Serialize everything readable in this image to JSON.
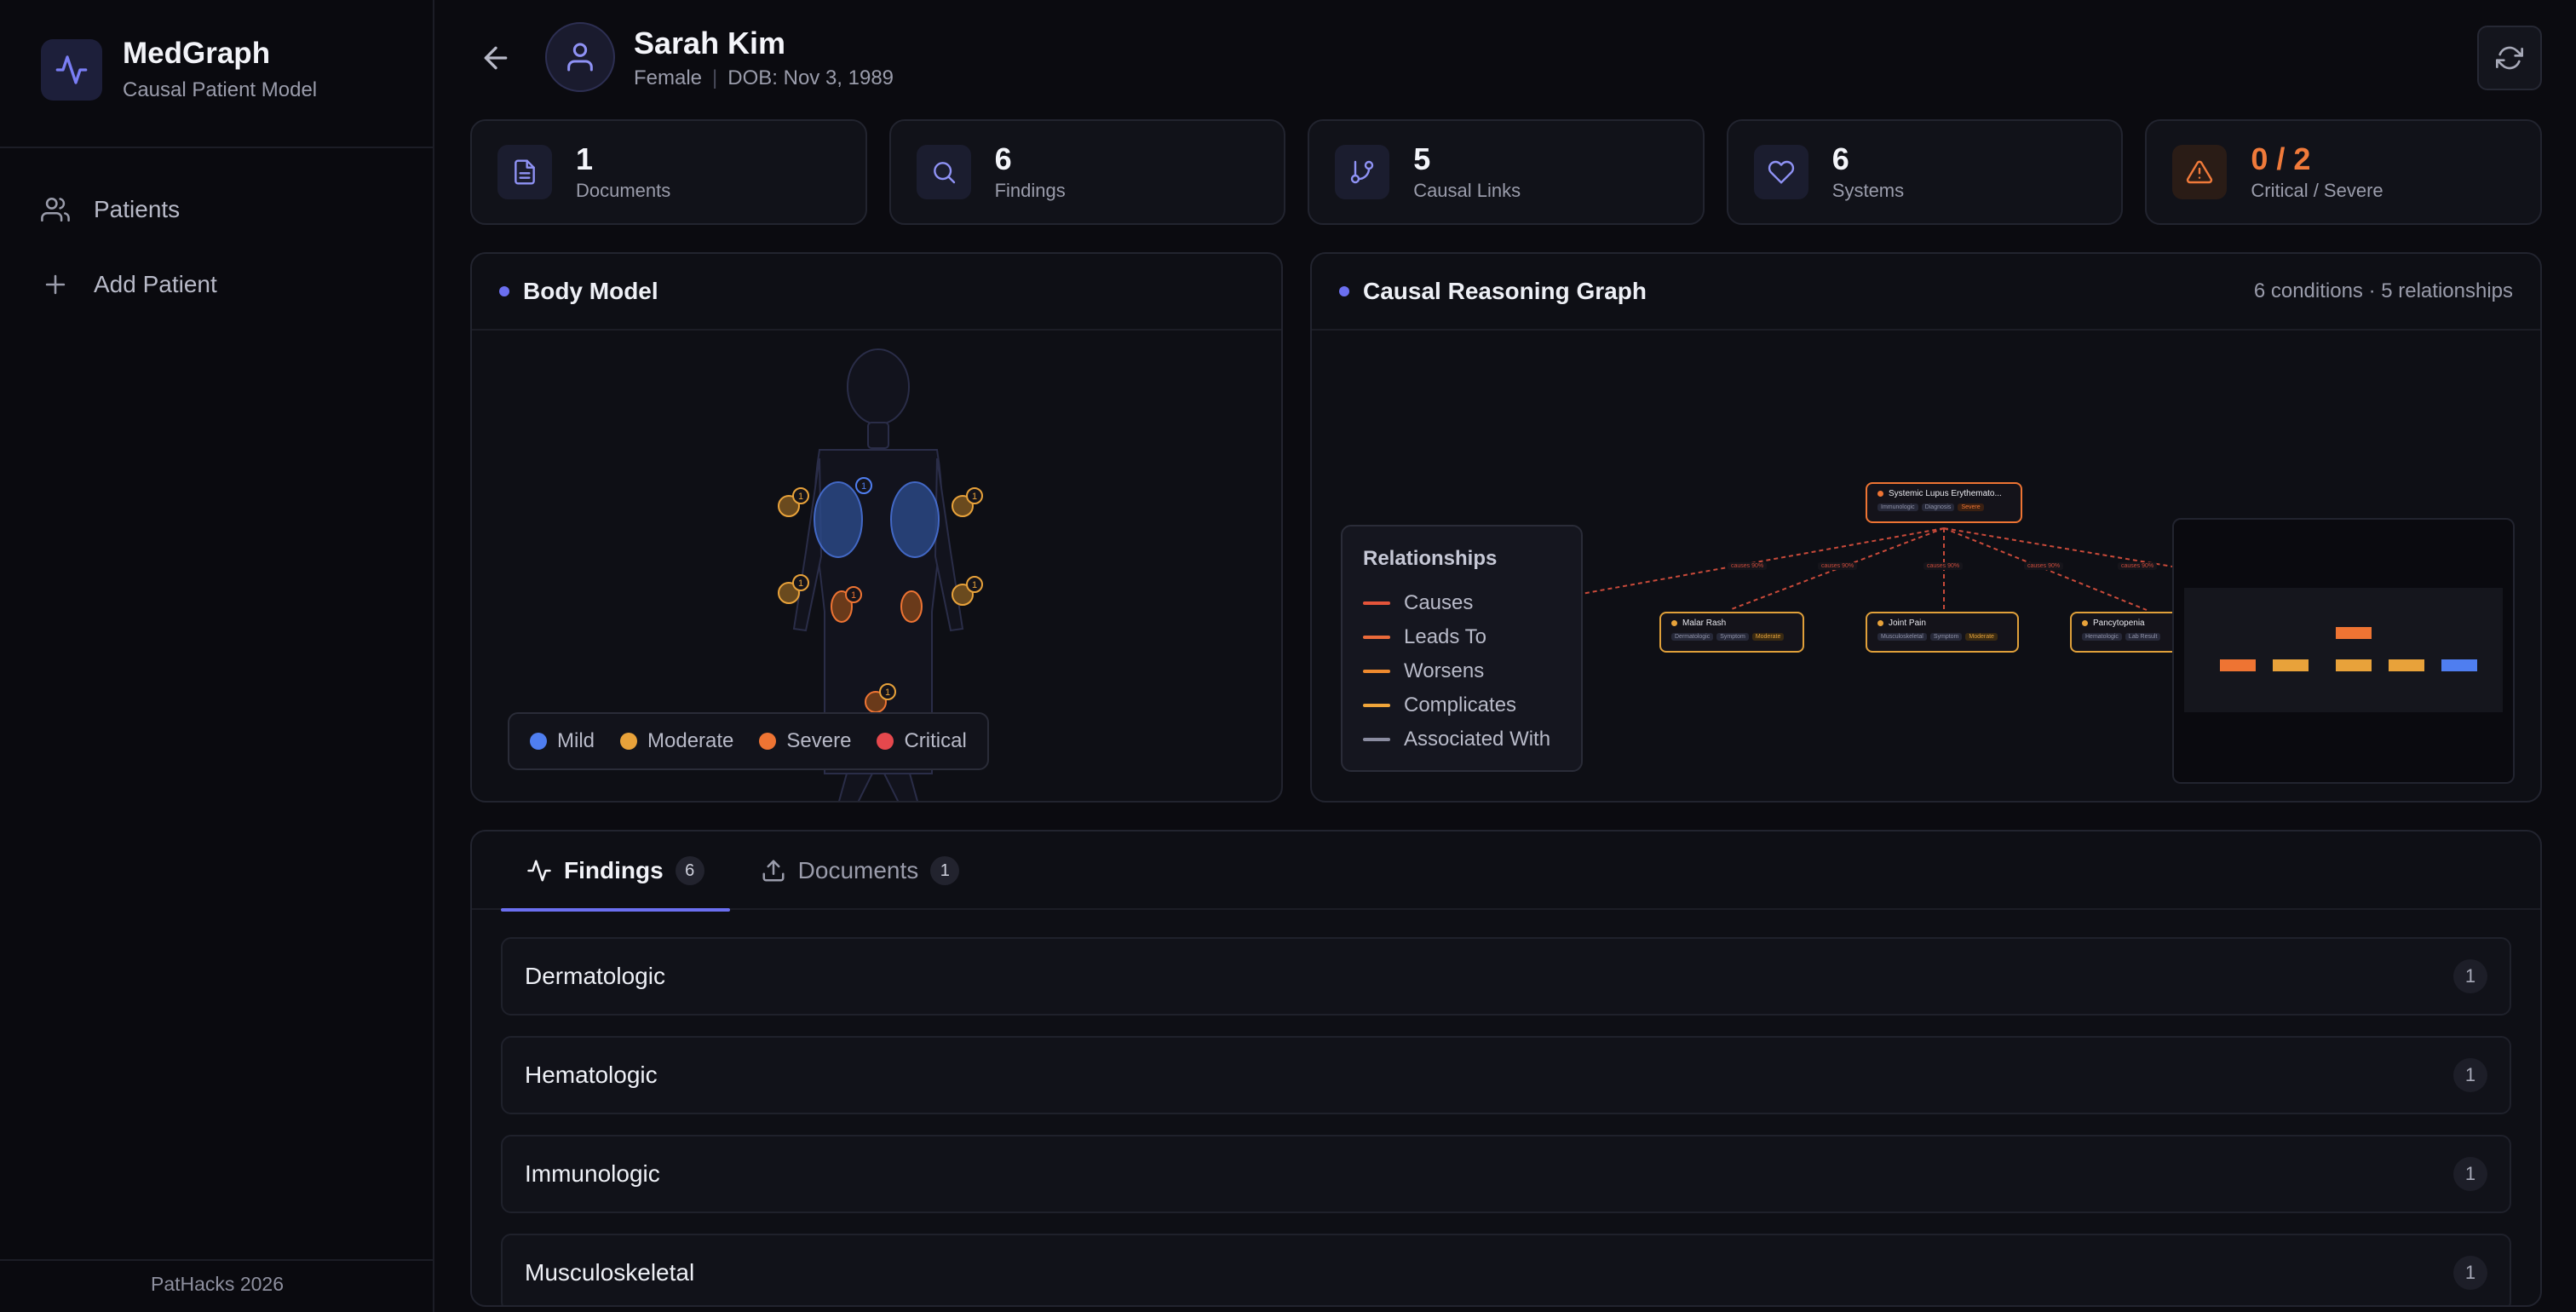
{
  "app": {
    "title": "MedGraph",
    "subtitle": "Causal Patient Model",
    "footer": "PatHacks 2026"
  },
  "nav": [
    {
      "label": "Patients",
      "icon": "users-icon"
    },
    {
      "label": "Add Patient",
      "icon": "plus-icon"
    }
  ],
  "patient": {
    "name": "Sarah Kim",
    "sex": "Female",
    "dob": "DOB: Nov 3, 1989"
  },
  "stats": [
    {
      "value": "1",
      "label": "Documents",
      "icon": "document-icon"
    },
    {
      "value": "6",
      "label": "Findings",
      "icon": "search-icon"
    },
    {
      "value": "5",
      "label": "Causal Links",
      "icon": "branch-icon"
    },
    {
      "value": "6",
      "label": "Systems",
      "icon": "heart-icon"
    },
    {
      "value": "0 / 2",
      "label": "Critical / Severe",
      "icon": "warning-icon"
    }
  ],
  "body_model": {
    "title": "Body Model",
    "badge": "1",
    "legend": [
      {
        "label": "Mild",
        "color": "#4f7ef0"
      },
      {
        "label": "Moderate",
        "color": "#e8a23a"
      },
      {
        "label": "Severe",
        "color": "#ee7433"
      },
      {
        "label": "Critical",
        "color": "#e5484d"
      }
    ]
  },
  "graph": {
    "title": "Causal Reasoning Graph",
    "meta": "6 conditions · 5 relationships",
    "legend_title": "Relationships",
    "relationships": [
      {
        "label": "Causes",
        "color": "#e5543a"
      },
      {
        "label": "Leads To",
        "color": "#ea6a3a"
      },
      {
        "label": "Worsens",
        "color": "#ef8a2e"
      },
      {
        "label": "Complicates",
        "color": "#f0a53a"
      },
      {
        "label": "Associated With",
        "color": "#8a8ca0"
      }
    ],
    "nodes": [
      {
        "title": "Systemic Lupus Erythemato...",
        "tags": [
          "Immunologic",
          "Diagnosis",
          "Severe"
        ],
        "color": "#ee7433"
      },
      {
        "title": "Malar Rash",
        "tags": [
          "Dermatologic",
          "Symptom",
          "Moderate"
        ],
        "color": "#e8a23a"
      },
      {
        "title": "Joint Pain",
        "tags": [
          "Musculoskeletal",
          "Symptom",
          "Moderate"
        ],
        "color": "#e8a23a"
      },
      {
        "title": "Pancytopenia",
        "tags": [
          "Hematologic",
          "Lab Result",
          ""
        ],
        "color": "#e8a23a"
      }
    ],
    "edge_label": "causes 90%"
  },
  "tabs": [
    {
      "label": "Findings",
      "count": "6",
      "icon": "activity-icon"
    },
    {
      "label": "Documents",
      "count": "1",
      "icon": "upload-icon"
    }
  ],
  "groups": [
    {
      "name": "Dermatologic",
      "count": "1"
    },
    {
      "name": "Hematologic",
      "count": "1"
    },
    {
      "name": "Immunologic",
      "count": "1"
    },
    {
      "name": "Musculoskeletal",
      "count": "1"
    }
  ]
}
